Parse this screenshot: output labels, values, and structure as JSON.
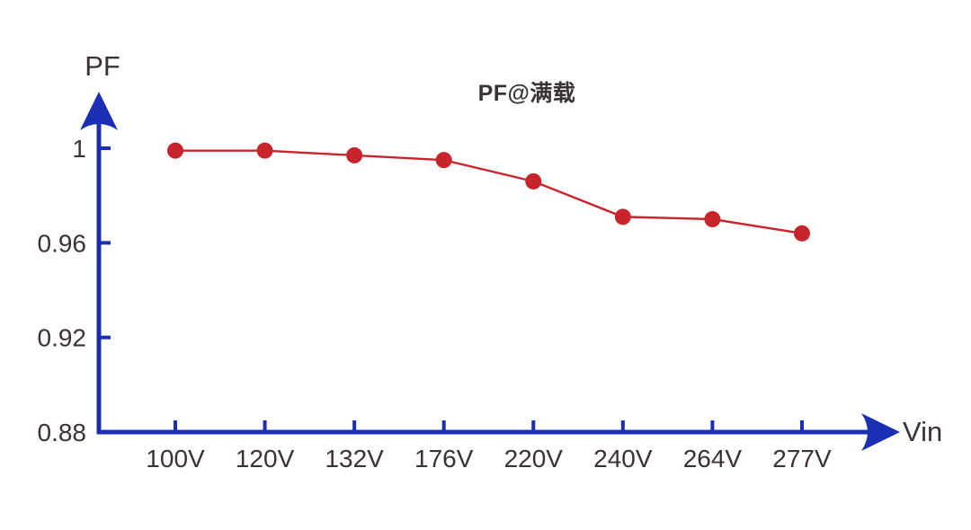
{
  "chart_data": {
    "type": "line",
    "title": "PF@满载",
    "xlabel": "Vin",
    "ylabel": "PF",
    "categories": [
      "100V",
      "120V",
      "132V",
      "176V",
      "220V",
      "240V",
      "264V",
      "277V"
    ],
    "series": [
      {
        "name": "PF",
        "values": [
          0.999,
          0.999,
          0.997,
          0.995,
          0.986,
          0.971,
          0.97,
          0.964
        ]
      }
    ],
    "yticks": [
      1,
      0.96,
      0.92,
      0.88
    ],
    "ytick_labels": [
      "1",
      "0.96",
      "0.92",
      "0.88"
    ],
    "ylim": [
      0.88,
      1.024
    ],
    "grid": false,
    "legend_position": "none",
    "colors": {
      "axis": "#1B2FB5",
      "series": "#C8242B",
      "text": "#3B3234"
    }
  }
}
